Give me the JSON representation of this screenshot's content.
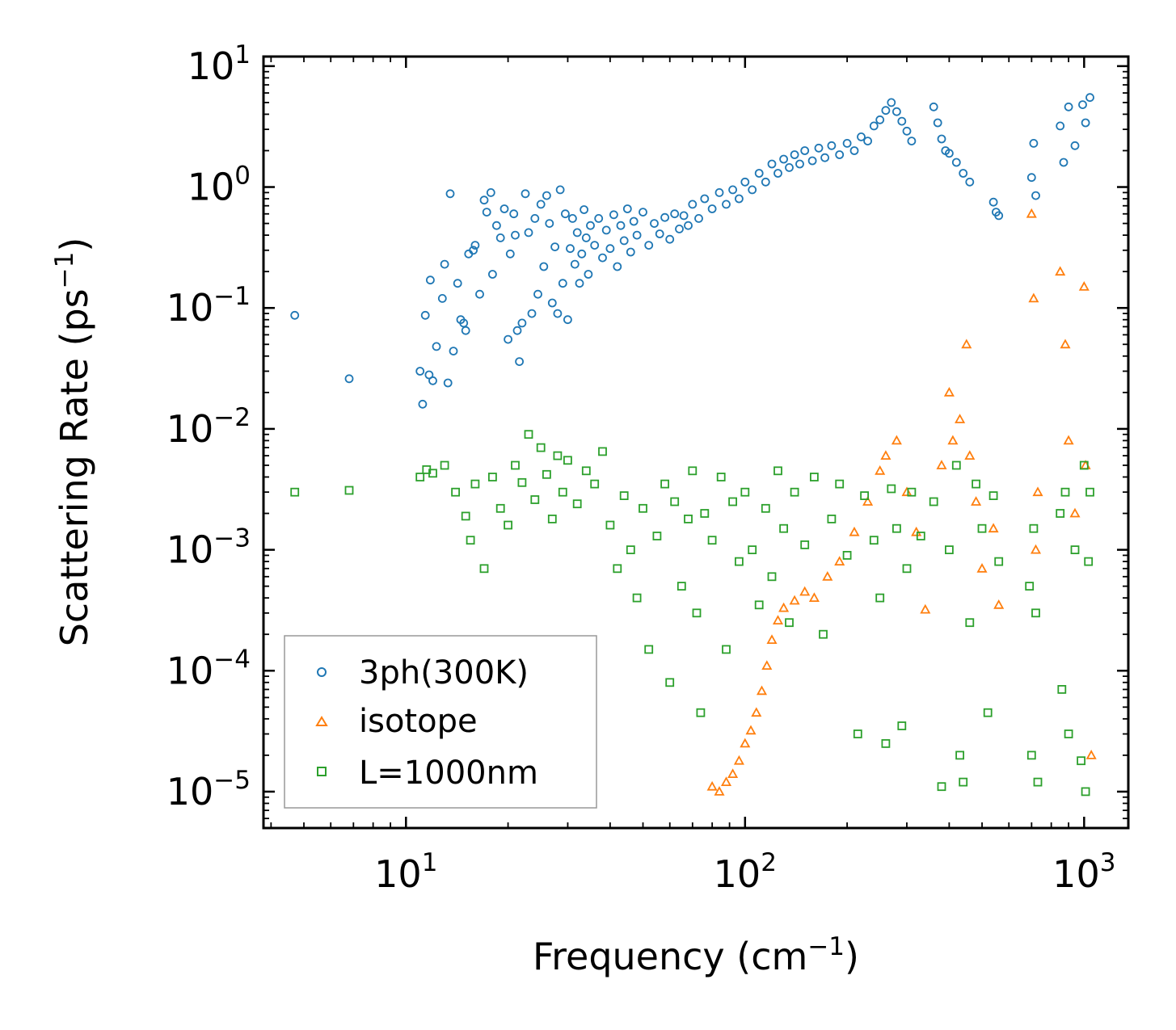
{
  "chart_data": {
    "type": "scatter",
    "title": "",
    "xscale": "log",
    "yscale": "log",
    "xlabel": {
      "text": "Frequency (cm",
      "sup": "−1",
      "suffix": ")"
    },
    "ylabel": {
      "text": "Scattering Rate (ps",
      "sup": "−1",
      "suffix": ")"
    },
    "xlim": [
      3.8,
      1350
    ],
    "ylim": [
      5e-06,
      12
    ],
    "xticks": [
      {
        "base": "10",
        "exp": "1",
        "value": 10
      },
      {
        "base": "10",
        "exp": "2",
        "value": 100
      },
      {
        "base": "10",
        "exp": "3",
        "value": 1000
      }
    ],
    "yticks": [
      {
        "base": "10",
        "exp": "−5",
        "value": 1e-05
      },
      {
        "base": "10",
        "exp": "−4",
        "value": 0.0001
      },
      {
        "base": "10",
        "exp": "−3",
        "value": 0.001
      },
      {
        "base": "10",
        "exp": "−2",
        "value": 0.01
      },
      {
        "base": "10",
        "exp": "−1",
        "value": 0.1
      },
      {
        "base": "10",
        "exp": "0",
        "value": 1
      },
      {
        "base": "10",
        "exp": "1",
        "value": 10
      }
    ],
    "legend_position": "lower-left",
    "series": [
      {
        "name": "3ph(300K)",
        "marker": "circle",
        "color": "#1f77b4",
        "points": [
          [
            4.7,
            0.087
          ],
          [
            6.8,
            0.026
          ],
          [
            11.0,
            0.03
          ],
          [
            11.2,
            0.016
          ],
          [
            11.4,
            0.087
          ],
          [
            11.7,
            0.028
          ],
          [
            11.8,
            0.17
          ],
          [
            12.0,
            0.025
          ],
          [
            12.3,
            0.048
          ],
          [
            12.8,
            0.12
          ],
          [
            13.0,
            0.23
          ],
          [
            13.3,
            0.024
          ],
          [
            13.5,
            0.88
          ],
          [
            13.8,
            0.044
          ],
          [
            14.2,
            0.16
          ],
          [
            14.5,
            0.08
          ],
          [
            14.8,
            0.075
          ],
          [
            15.0,
            0.065
          ],
          [
            15.3,
            0.28
          ],
          [
            15.8,
            0.3
          ],
          [
            16.0,
            0.33
          ],
          [
            16.5,
            0.13
          ],
          [
            17.0,
            0.78
          ],
          [
            17.3,
            0.62
          ],
          [
            17.8,
            0.9
          ],
          [
            18.0,
            0.19
          ],
          [
            18.5,
            0.48
          ],
          [
            19.0,
            0.38
          ],
          [
            19.5,
            0.66
          ],
          [
            20.0,
            0.055
          ],
          [
            20.3,
            0.28
          ],
          [
            20.8,
            0.6
          ],
          [
            21.0,
            0.4
          ],
          [
            21.3,
            0.065
          ],
          [
            21.6,
            0.036
          ],
          [
            22.0,
            0.075
          ],
          [
            22.5,
            0.88
          ],
          [
            23.0,
            0.42
          ],
          [
            23.5,
            0.09
          ],
          [
            24.0,
            0.55
          ],
          [
            24.5,
            0.13
          ],
          [
            25.0,
            0.72
          ],
          [
            25.5,
            0.22
          ],
          [
            26.0,
            0.85
          ],
          [
            26.5,
            0.5
          ],
          [
            27.0,
            0.11
          ],
          [
            27.5,
            0.32
          ],
          [
            28.0,
            0.09
          ],
          [
            28.5,
            0.95
          ],
          [
            29.0,
            0.16
          ],
          [
            29.5,
            0.6
          ],
          [
            30.0,
            0.08
          ],
          [
            30.5,
            0.31
          ],
          [
            31.0,
            0.55
          ],
          [
            31.5,
            0.23
          ],
          [
            32.0,
            0.42
          ],
          [
            32.5,
            0.16
          ],
          [
            33.0,
            0.28
          ],
          [
            33.5,
            0.65
          ],
          [
            34.0,
            0.38
          ],
          [
            34.5,
            0.19
          ],
          [
            35.0,
            0.48
          ],
          [
            36.0,
            0.33
          ],
          [
            37.0,
            0.55
          ],
          [
            38.0,
            0.26
          ],
          [
            39.0,
            0.44
          ],
          [
            40.0,
            0.31
          ],
          [
            41.0,
            0.59
          ],
          [
            42.0,
            0.22
          ],
          [
            43.0,
            0.48
          ],
          [
            44.0,
            0.36
          ],
          [
            45.0,
            0.66
          ],
          [
            46.0,
            0.29
          ],
          [
            47.0,
            0.52
          ],
          [
            48.0,
            0.4
          ],
          [
            50.0,
            0.62
          ],
          [
            52.0,
            0.33
          ],
          [
            54.0,
            0.5
          ],
          [
            56.0,
            0.41
          ],
          [
            58.0,
            0.56
          ],
          [
            60.0,
            0.37
          ],
          [
            62.0,
            0.6
          ],
          [
            64.0,
            0.45
          ],
          [
            66.0,
            0.58
          ],
          [
            68.0,
            0.48
          ],
          [
            70.0,
            0.72
          ],
          [
            73.0,
            0.55
          ],
          [
            76.0,
            0.8
          ],
          [
            80.0,
            0.66
          ],
          [
            84.0,
            0.9
          ],
          [
            88.0,
            0.72
          ],
          [
            92.0,
            0.95
          ],
          [
            96.0,
            0.8
          ],
          [
            100.0,
            1.1
          ],
          [
            105.0,
            0.95
          ],
          [
            110.0,
            1.3
          ],
          [
            115.0,
            1.1
          ],
          [
            120.0,
            1.55
          ],
          [
            125.0,
            1.3
          ],
          [
            130.0,
            1.7
          ],
          [
            135.0,
            1.45
          ],
          [
            140.0,
            1.85
          ],
          [
            145.0,
            1.55
          ],
          [
            150.0,
            2.0
          ],
          [
            158.0,
            1.65
          ],
          [
            165.0,
            2.1
          ],
          [
            172.0,
            1.75
          ],
          [
            180.0,
            2.2
          ],
          [
            190.0,
            1.85
          ],
          [
            200.0,
            2.3
          ],
          [
            210.0,
            2.0
          ],
          [
            220.0,
            2.6
          ],
          [
            230.0,
            2.4
          ],
          [
            240.0,
            3.2
          ],
          [
            250.0,
            3.6
          ],
          [
            260.0,
            4.3
          ],
          [
            270.0,
            5.0
          ],
          [
            280.0,
            4.2
          ],
          [
            290.0,
            3.5
          ],
          [
            300.0,
            2.9
          ],
          [
            310.0,
            2.4
          ],
          [
            360.0,
            4.6
          ],
          [
            370.0,
            3.4
          ],
          [
            380.0,
            2.5
          ],
          [
            390.0,
            2.0
          ],
          [
            400.0,
            1.9
          ],
          [
            420.0,
            1.6
          ],
          [
            440.0,
            1.3
          ],
          [
            460.0,
            1.1
          ],
          [
            540.0,
            0.75
          ],
          [
            550.0,
            0.62
          ],
          [
            560.0,
            0.58
          ],
          [
            700.0,
            1.2
          ],
          [
            710.0,
            2.3
          ],
          [
            720.0,
            0.85
          ],
          [
            850.0,
            3.2
          ],
          [
            870.0,
            1.6
          ],
          [
            900.0,
            4.6
          ],
          [
            940.0,
            2.2
          ],
          [
            990.0,
            4.8
          ],
          [
            1010.0,
            3.4
          ],
          [
            1040.0,
            5.5
          ]
        ]
      },
      {
        "name": "isotope",
        "marker": "triangle",
        "color": "#ff7f0e",
        "points": [
          [
            80.0,
            1.1e-05
          ],
          [
            84.0,
            1e-05
          ],
          [
            88.0,
            1.2e-05
          ],
          [
            92.0,
            1.4e-05
          ],
          [
            96.0,
            1.8e-05
          ],
          [
            100.0,
            2.5e-05
          ],
          [
            104.0,
            3.2e-05
          ],
          [
            108.0,
            4.5e-05
          ],
          [
            112.0,
            6.8e-05
          ],
          [
            116.0,
            0.00011
          ],
          [
            120.0,
            0.00018
          ],
          [
            125.0,
            0.00026
          ],
          [
            130.0,
            0.00033
          ],
          [
            140.0,
            0.00038
          ],
          [
            150.0,
            0.00045
          ],
          [
            160.0,
            0.0004
          ],
          [
            175.0,
            0.0006
          ],
          [
            190.0,
            0.0008
          ],
          [
            210.0,
            0.0014
          ],
          [
            230.0,
            0.0025
          ],
          [
            250.0,
            0.0045
          ],
          [
            260.0,
            0.006
          ],
          [
            280.0,
            0.008
          ],
          [
            300.0,
            0.003
          ],
          [
            320.0,
            0.0014
          ],
          [
            340.0,
            0.00032
          ],
          [
            380.0,
            0.005
          ],
          [
            400.0,
            0.02
          ],
          [
            410.0,
            0.008
          ],
          [
            430.0,
            0.012
          ],
          [
            450.0,
            0.05
          ],
          [
            460.0,
            0.006
          ],
          [
            480.0,
            0.0025
          ],
          [
            500.0,
            0.0007
          ],
          [
            540.0,
            0.0015
          ],
          [
            560.0,
            0.00035
          ],
          [
            700.0,
            0.6
          ],
          [
            710.0,
            0.12
          ],
          [
            720.0,
            0.001
          ],
          [
            730.0,
            0.003
          ],
          [
            850.0,
            0.2
          ],
          [
            880.0,
            0.05
          ],
          [
            900.0,
            0.008
          ],
          [
            940.0,
            0.002
          ],
          [
            1000.0,
            0.15
          ],
          [
            1010.0,
            0.005
          ],
          [
            1050.0,
            2e-05
          ]
        ]
      },
      {
        "name": "L=1000nm",
        "marker": "square",
        "color": "#2ca02c",
        "points": [
          [
            4.7,
            0.003
          ],
          [
            6.8,
            0.0031
          ],
          [
            11.0,
            0.004
          ],
          [
            11.5,
            0.0046
          ],
          [
            12.0,
            0.0043
          ],
          [
            13.0,
            0.005
          ],
          [
            14.0,
            0.003
          ],
          [
            15.0,
            0.0019
          ],
          [
            15.5,
            0.0012
          ],
          [
            16.0,
            0.0035
          ],
          [
            17.0,
            0.0007
          ],
          [
            18.0,
            0.004
          ],
          [
            19.0,
            0.0022
          ],
          [
            20.0,
            0.0016
          ],
          [
            21.0,
            0.005
          ],
          [
            22.0,
            0.0036
          ],
          [
            23.0,
            0.009
          ],
          [
            24.0,
            0.0026
          ],
          [
            25.0,
            0.007
          ],
          [
            26.0,
            0.0042
          ],
          [
            27.0,
            0.0018
          ],
          [
            28.0,
            0.006
          ],
          [
            29.0,
            0.003
          ],
          [
            30.0,
            0.0055
          ],
          [
            32.0,
            0.0024
          ],
          [
            34.0,
            0.0045
          ],
          [
            36.0,
            0.0035
          ],
          [
            38.0,
            0.0065
          ],
          [
            40.0,
            0.0016
          ],
          [
            42.0,
            0.0007
          ],
          [
            44.0,
            0.0028
          ],
          [
            46.0,
            0.001
          ],
          [
            48.0,
            0.0004
          ],
          [
            50.0,
            0.0022
          ],
          [
            52.0,
            0.00015
          ],
          [
            55.0,
            0.0013
          ],
          [
            58.0,
            0.0035
          ],
          [
            60.0,
            8e-05
          ],
          [
            62.0,
            0.0025
          ],
          [
            65.0,
            0.0005
          ],
          [
            68.0,
            0.0018
          ],
          [
            70.0,
            0.0045
          ],
          [
            72.0,
            0.0003
          ],
          [
            74.0,
            4.5e-05
          ],
          [
            76.0,
            0.002
          ],
          [
            80.0,
            0.0012
          ],
          [
            85.0,
            0.004
          ],
          [
            88.0,
            0.00015
          ],
          [
            92.0,
            0.0025
          ],
          [
            96.0,
            0.0008
          ],
          [
            100.0,
            0.003
          ],
          [
            105.0,
            0.001
          ],
          [
            110.0,
            0.00035
          ],
          [
            115.0,
            0.0022
          ],
          [
            120.0,
            0.0006
          ],
          [
            125.0,
            0.0045
          ],
          [
            130.0,
            0.0015
          ],
          [
            135.0,
            0.00025
          ],
          [
            140.0,
            0.003
          ],
          [
            150.0,
            0.0011
          ],
          [
            160.0,
            0.004
          ],
          [
            170.0,
            0.0002
          ],
          [
            180.0,
            0.0018
          ],
          [
            190.0,
            0.0035
          ],
          [
            200.0,
            0.0009
          ],
          [
            215.0,
            3e-05
          ],
          [
            225.0,
            0.0028
          ],
          [
            240.0,
            0.0012
          ],
          [
            250.0,
            0.0004
          ],
          [
            260.0,
            2.5e-05
          ],
          [
            270.0,
            0.0032
          ],
          [
            280.0,
            0.0015
          ],
          [
            290.0,
            3.5e-05
          ],
          [
            300.0,
            0.0007
          ],
          [
            310.0,
            0.003
          ],
          [
            330.0,
            0.0013
          ],
          [
            360.0,
            0.0025
          ],
          [
            380.0,
            1.1e-05
          ],
          [
            400.0,
            0.001
          ],
          [
            420.0,
            0.005
          ],
          [
            430.0,
            2e-05
          ],
          [
            440.0,
            1.2e-05
          ],
          [
            460.0,
            0.00025
          ],
          [
            480.0,
            0.0035
          ],
          [
            500.0,
            0.0015
          ],
          [
            520.0,
            4.5e-05
          ],
          [
            540.0,
            0.0028
          ],
          [
            560.0,
            0.0008
          ],
          [
            690.0,
            0.0005
          ],
          [
            700.0,
            2e-05
          ],
          [
            710.0,
            0.0015
          ],
          [
            720.0,
            0.0003
          ],
          [
            730.0,
            1.2e-05
          ],
          [
            850.0,
            0.002
          ],
          [
            860.0,
            7e-05
          ],
          [
            880.0,
            0.003
          ],
          [
            900.0,
            3e-05
          ],
          [
            940.0,
            0.001
          ],
          [
            980.0,
            1.8e-05
          ],
          [
            1000.0,
            0.005
          ],
          [
            1010.0,
            1e-05
          ],
          [
            1030.0,
            0.0008
          ],
          [
            1040.0,
            0.003
          ]
        ]
      }
    ]
  }
}
